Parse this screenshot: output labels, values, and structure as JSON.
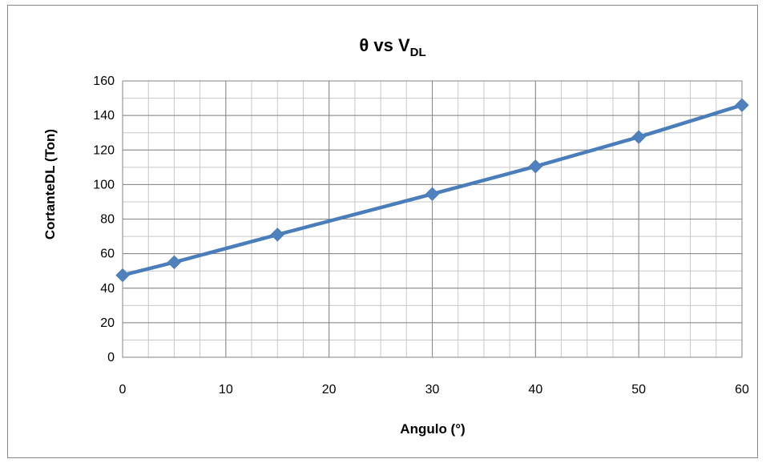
{
  "chart_data": {
    "type": "line",
    "title": {
      "main": "θ vs V",
      "subscript": "DL"
    },
    "xlabel": "Angulo (°)",
    "ylabel": "CortanteDL (Ton)",
    "xlim": [
      0,
      60
    ],
    "ylim": [
      0,
      160
    ],
    "x_ticks": [
      0,
      10,
      20,
      30,
      40,
      50,
      60
    ],
    "y_ticks": [
      0,
      20,
      40,
      60,
      80,
      100,
      120,
      140,
      160
    ],
    "x_minor_step": 2.5,
    "y_minor_step": 10,
    "grid": true,
    "legend": "none",
    "series": [
      {
        "x": [
          0,
          5,
          15,
          30,
          40,
          50,
          60
        ],
        "values": [
          47.5,
          55,
          71,
          94.5,
          110.5,
          127.5,
          146
        ]
      }
    ],
    "colors": {
      "series": "#4A7EBB",
      "marker": "#4F81BD",
      "grid_major": "#868686",
      "grid_minor": "#C8C8C8"
    }
  }
}
